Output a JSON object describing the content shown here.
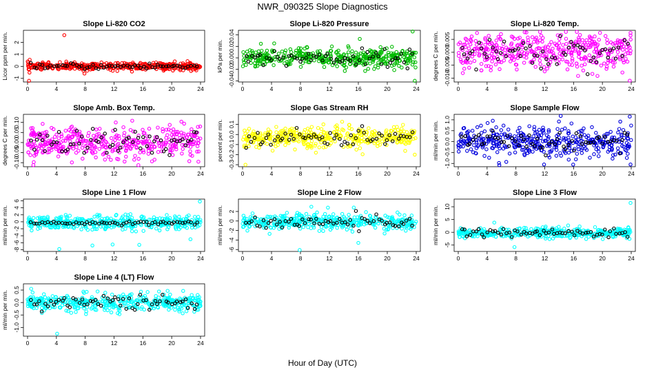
{
  "figure": {
    "title": "NWR_090325  Slope Diagnostics",
    "xlabel": "Hour of Day (UTC)"
  },
  "chart_data": [
    {
      "type": "scatter",
      "title": "Slope Li-820 CO2",
      "ylabel": "Licor ppm per min.",
      "color": "#ff0000",
      "xlim": [
        0,
        24
      ],
      "xticks": [
        0,
        4,
        8,
        12,
        16,
        20,
        24
      ],
      "ylim": [
        -1.3,
        3.0
      ],
      "yticks": [
        -1,
        0,
        1,
        2
      ],
      "center": 0.0,
      "spread": 0.15,
      "black_spread": 0.12,
      "outliers": [
        {
          "x": 5.1,
          "y": 2.6
        },
        {
          "x": 0.3,
          "y": 0.55
        },
        {
          "x": 7.9,
          "y": -0.6
        },
        {
          "x": 0.2,
          "y": -1.2
        }
      ]
    },
    {
      "type": "scatter",
      "title": "Slope Li-820 Pressure",
      "ylabel": "kPa per min.",
      "color": "#00bb00",
      "xlim": [
        0,
        24
      ],
      "xticks": [
        0,
        4,
        8,
        12,
        16,
        20,
        24
      ],
      "ylim": [
        -0.042,
        0.048
      ],
      "yticks": [
        -0.04,
        -0.02,
        0.0,
        0.02,
        0.04
      ],
      "center": 0.0,
      "spread": 0.008,
      "black_spread": 0.007,
      "outliers": [
        {
          "x": 23.5,
          "y": 0.046
        },
        {
          "x": 23.8,
          "y": -0.04
        },
        {
          "x": 16.2,
          "y": 0.033
        }
      ]
    },
    {
      "type": "scatter",
      "title": "Slope Li-820 Temp.",
      "ylabel": "degrees C per min.",
      "color": "#ff00ff",
      "xlim": [
        0,
        24
      ],
      "xticks": [
        0,
        4,
        8,
        12,
        16,
        20,
        24
      ],
      "ylim": [
        -0.0115,
        0.0085
      ],
      "yticks": [
        -0.01,
        -0.005,
        0.0,
        0.005
      ],
      "center": 0.0,
      "spread": 0.0035,
      "black_spread": 0.003,
      "outliers": [
        {
          "x": 23.9,
          "y": 0.0065
        },
        {
          "x": 23.8,
          "y": -0.011
        },
        {
          "x": 3.2,
          "y": -0.007
        }
      ]
    },
    {
      "type": "scatter",
      "title": "Slope Amb. Box Temp.",
      "ylabel": "degrees C per min.",
      "color": "#ff00ff",
      "xlim": [
        0,
        24
      ],
      "xticks": [
        0,
        4,
        8,
        12,
        16,
        20,
        24
      ],
      "ylim": [
        -0.12,
        0.14
      ],
      "yticks": [
        -0.1,
        -0.05,
        0.0,
        0.05,
        0.1
      ],
      "center": 0.0,
      "spread": 0.04,
      "black_spread": 0.035,
      "outliers": [
        {
          "x": 23.7,
          "y": -0.095
        },
        {
          "x": 14.8,
          "y": -0.085
        }
      ]
    },
    {
      "type": "scatter",
      "title": "Slope Gas Stream RH",
      "ylabel": "percent per min.",
      "color": "#ffff00",
      "xlim": [
        0,
        24
      ],
      "xticks": [
        0,
        4,
        8,
        12,
        16,
        20,
        24
      ],
      "ylim": [
        -0.32,
        0.2
      ],
      "yticks": [
        -0.3,
        -0.2,
        -0.1,
        0.0,
        0.1
      ],
      "center": -0.03,
      "spread": 0.05,
      "black_spread": 0.04,
      "outliers": [
        {
          "x": 0.4,
          "y": -0.3
        },
        {
          "x": 23.8,
          "y": -0.2
        }
      ]
    },
    {
      "type": "scatter",
      "title": "Slope Sample Flow",
      "ylabel": "ml/min per min.",
      "color": "#0000dd",
      "xlim": [
        0,
        24
      ],
      "xticks": [
        0,
        4,
        8,
        12,
        16,
        20,
        24
      ],
      "ylim": [
        -1.15,
        1.25
      ],
      "yticks": [
        -1.0,
        -0.5,
        0.0,
        0.5,
        1.0
      ],
      "center": 0.0,
      "spread": 0.35,
      "black_spread": 0.25,
      "outliers": [
        {
          "x": 23.8,
          "y": 1.15
        },
        {
          "x": 23.9,
          "y": -1.05
        },
        {
          "x": 11.9,
          "y": -1.05
        }
      ]
    },
    {
      "type": "scatter",
      "title": "Slope Line 1 Flow",
      "ylabel": "ml/min per min.",
      "color": "#00ffff",
      "xlim": [
        0,
        24
      ],
      "xticks": [
        0,
        4,
        8,
        12,
        16,
        20,
        24
      ],
      "ylim": [
        -8.5,
        6.5
      ],
      "yticks": [
        -8,
        -6,
        -4,
        -2,
        0,
        2,
        4,
        6
      ],
      "center": -0.3,
      "spread": 1.0,
      "black_spread": 0.25,
      "outliers": [
        {
          "x": 23.9,
          "y": 5.8
        },
        {
          "x": 4.4,
          "y": -7.8
        },
        {
          "x": 11.8,
          "y": -6.5
        },
        {
          "x": 9.0,
          "y": -6.8
        },
        {
          "x": 15.5,
          "y": -6.6
        },
        {
          "x": 22.6,
          "y": -5.0
        }
      ]
    },
    {
      "type": "scatter",
      "title": "Slope Line 2 Flow",
      "ylabel": "ml/min per min.",
      "color": "#00ffff",
      "xlim": [
        0,
        24
      ],
      "xticks": [
        0,
        4,
        8,
        12,
        16,
        20,
        24
      ],
      "ylim": [
        -6.4,
        4.6
      ],
      "yticks": [
        -6,
        -4,
        -2,
        0,
        2
      ],
      "center": -0.2,
      "spread": 0.8,
      "black_spread": 0.7,
      "outliers": [
        {
          "x": 7.9,
          "y": -6.1
        },
        {
          "x": 11.8,
          "y": 2.8
        },
        {
          "x": 16.0,
          "y": -4.6
        },
        {
          "x": 9.5,
          "y": 3.0
        }
      ]
    },
    {
      "type": "scatter",
      "title": "Slope Line 3 Flow",
      "ylabel": "ml/min per min.",
      "color": "#00ffff",
      "xlim": [
        0,
        24
      ],
      "xticks": [
        0,
        4,
        8,
        12,
        16,
        20,
        24
      ],
      "ylim": [
        -7.5,
        13
      ],
      "yticks": [
        -5,
        0,
        5,
        10
      ],
      "center": -0.3,
      "spread": 1.0,
      "black_spread": 0.8,
      "outliers": [
        {
          "x": 23.9,
          "y": 11.5
        },
        {
          "x": 7.8,
          "y": -5.8
        },
        {
          "x": 5.0,
          "y": 3.8
        }
      ]
    },
    {
      "type": "scatter",
      "title": "Slope Line 4 (LT) Flow",
      "ylabel": "ml/min per min.",
      "color": "#00ffff",
      "xlim": [
        0,
        24
      ],
      "xticks": [
        0,
        4,
        8,
        12,
        16,
        20,
        24
      ],
      "ylim": [
        -1.35,
        0.75
      ],
      "yticks": [
        -1.0,
        -0.5,
        0.0,
        0.5
      ],
      "center": 0.0,
      "spread": 0.17,
      "black_spread": 0.14,
      "outliers": [
        {
          "x": 4.1,
          "y": -1.25
        },
        {
          "x": 0.5,
          "y": 0.55
        }
      ]
    }
  ]
}
